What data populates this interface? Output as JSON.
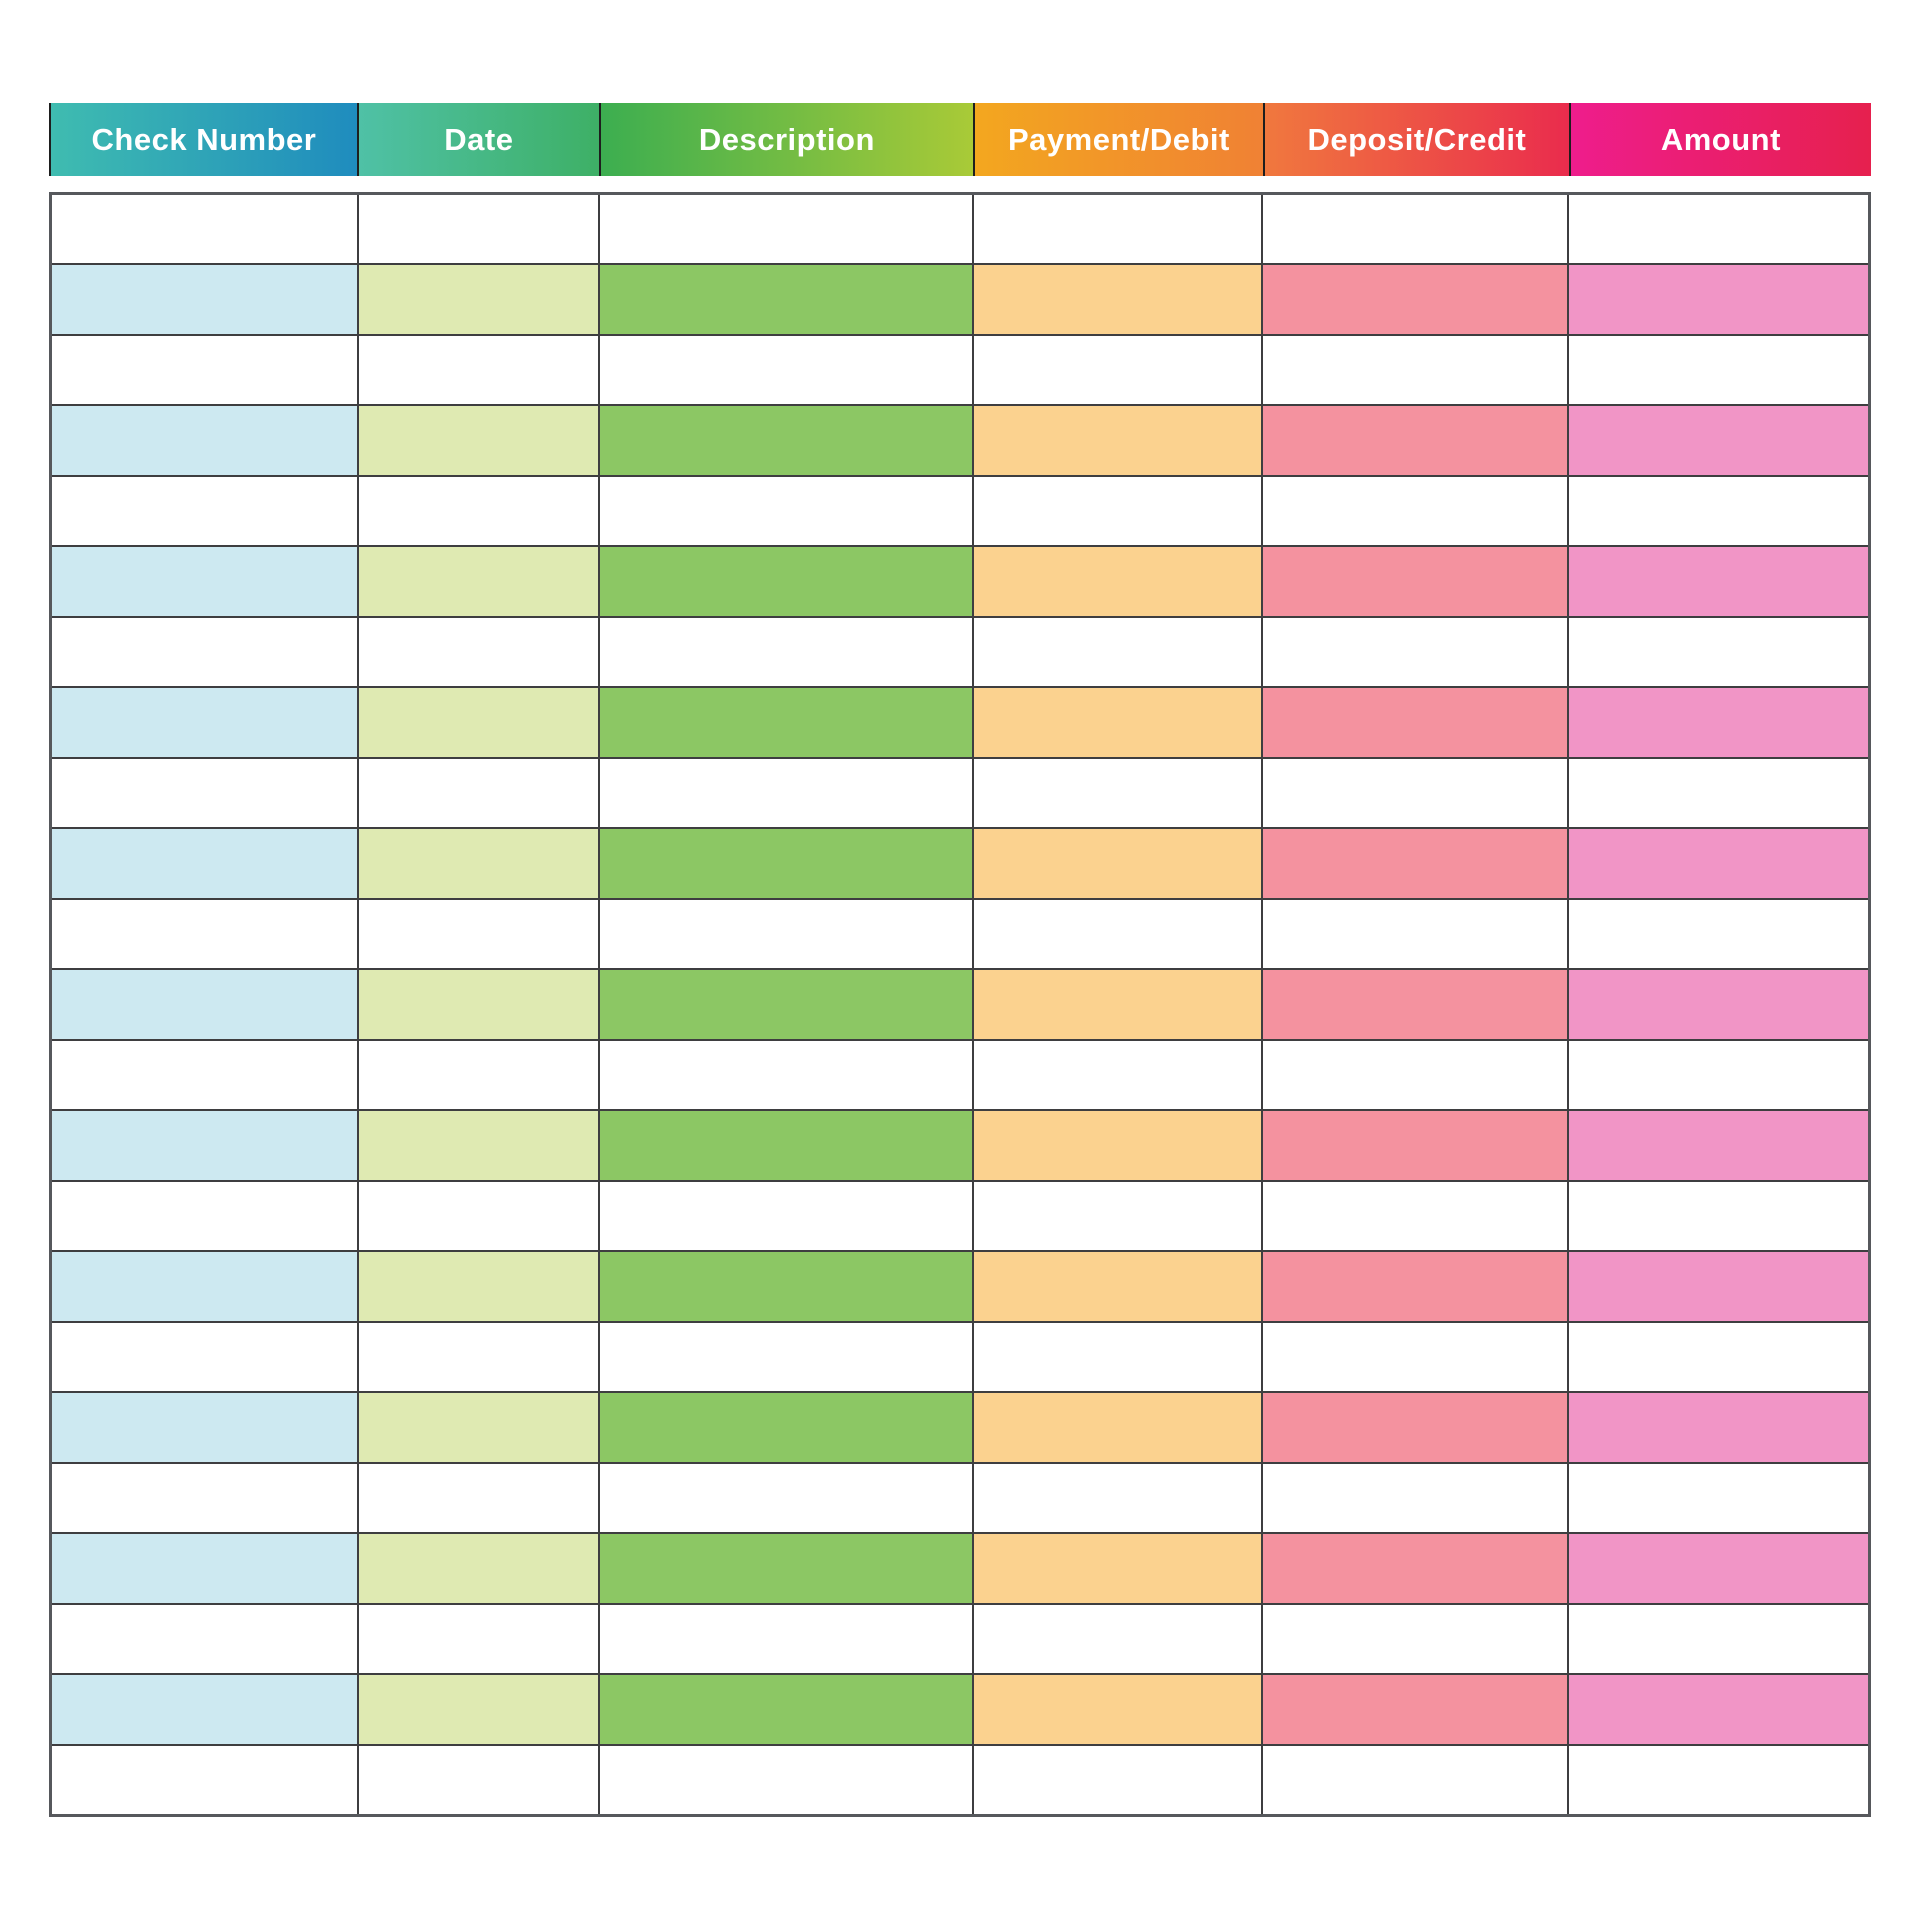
{
  "page": {
    "background_color": "#ffffff",
    "kind": "check register template"
  },
  "table": {
    "header_text_color": "#ffffff",
    "header_separator_color": "#1e1e1e",
    "grid_line_color": "#3e3e40",
    "outer_border_color": "#56585c",
    "blank_row_color": "#ffffff",
    "columns": [
      {
        "id": "check-number",
        "label": "Check Number",
        "header_gradient_start": "#3fbcb0",
        "header_gradient_end": "#1f8cbe",
        "tint": "#cde9f1",
        "width_pct": 16.9
      },
      {
        "id": "date",
        "label": "Date",
        "header_gradient_start": "#4fc1a6",
        "header_gradient_end": "#3eb066",
        "tint": "#dfeab2",
        "width_pct": 13.28
      },
      {
        "id": "description",
        "label": "Description",
        "header_gradient_start": "#3cae50",
        "header_gradient_end": "#a9ca37",
        "tint": "#8cc764",
        "width_pct": 20.53
      },
      {
        "id": "payment-debit",
        "label": "Payment/Debit",
        "header_gradient_start": "#f3a71f",
        "header_gradient_end": "#f08134",
        "tint": "#fbd28f",
        "width_pct": 15.92
      },
      {
        "id": "deposit-credit",
        "label": "Deposit/Credit",
        "header_gradient_start": "#f0783e",
        "header_gradient_end": "#ea2c4d",
        "tint": "#f4929f",
        "width_pct": 16.79
      },
      {
        "id": "amount",
        "label": "Amount",
        "header_gradient_start": "#ee1d8c",
        "header_gradient_end": "#e6204e",
        "tint": "#f195c6",
        "width_pct": 16.58
      }
    ],
    "row_count": 23,
    "rows": [
      {
        "type": "blank"
      },
      {
        "type": "tinted"
      },
      {
        "type": "blank"
      },
      {
        "type": "tinted"
      },
      {
        "type": "blank"
      },
      {
        "type": "tinted"
      },
      {
        "type": "blank"
      },
      {
        "type": "tinted"
      },
      {
        "type": "blank"
      },
      {
        "type": "tinted"
      },
      {
        "type": "blank"
      },
      {
        "type": "tinted"
      },
      {
        "type": "blank"
      },
      {
        "type": "tinted"
      },
      {
        "type": "blank"
      },
      {
        "type": "tinted"
      },
      {
        "type": "blank"
      },
      {
        "type": "tinted"
      },
      {
        "type": "blank"
      },
      {
        "type": "tinted"
      },
      {
        "type": "blank"
      },
      {
        "type": "tinted"
      },
      {
        "type": "blank"
      }
    ],
    "all_cells_empty": true
  }
}
